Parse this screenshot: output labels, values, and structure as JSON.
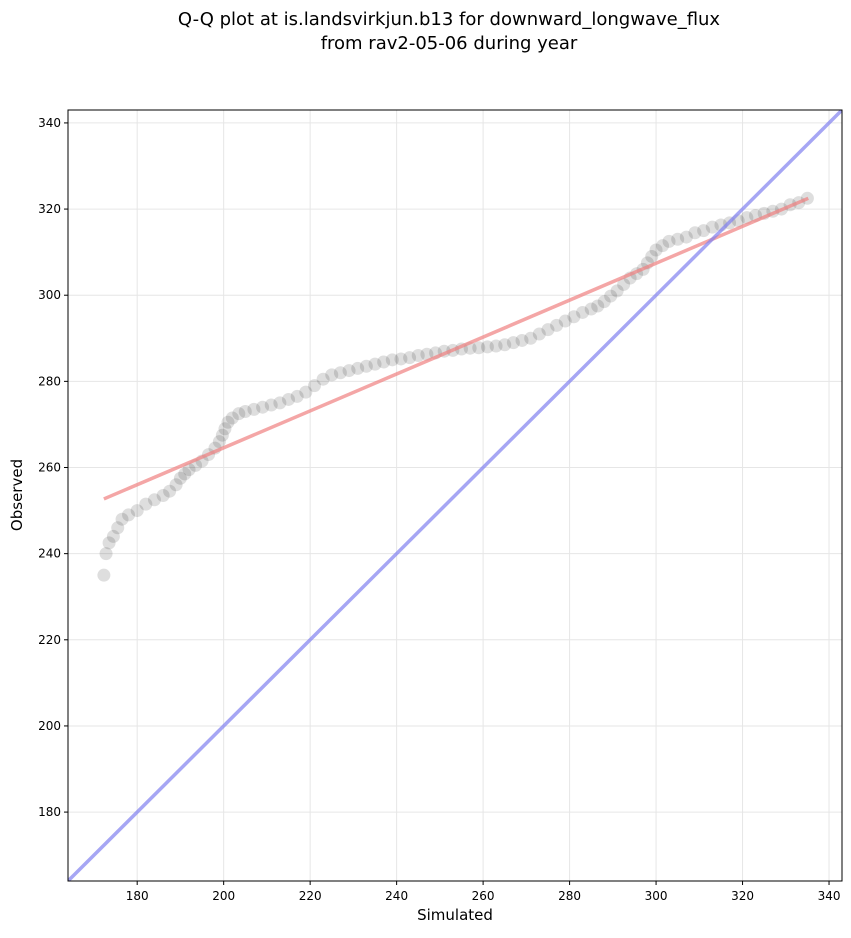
{
  "chart_data": {
    "type": "scatter",
    "title": "Q-Q plot at is.landsvirkjun.b13 for downward_longwave_flux",
    "subtitle": "from rav2-05-06 during year",
    "xlabel": "Simulated",
    "ylabel": "Observed",
    "xlim": [
      164,
      343
    ],
    "ylim": [
      164,
      343
    ],
    "xticks": [
      180,
      200,
      220,
      240,
      260,
      280,
      300,
      320,
      340
    ],
    "yticks": [
      180,
      200,
      220,
      240,
      260,
      280,
      300,
      320,
      340
    ],
    "grid": true,
    "series": [
      {
        "kind": "points",
        "color": "#000000",
        "x": [
          172.3,
          172.8,
          173.5,
          174.5,
          175.5,
          176.5,
          178,
          180,
          182,
          184,
          186,
          187.5,
          189,
          190,
          191,
          192,
          193.5,
          195,
          196.5,
          198,
          199,
          199.7,
          200.3,
          201,
          202,
          203.5,
          205,
          207,
          209,
          211,
          213,
          215,
          217,
          219,
          221,
          223,
          225,
          227,
          229,
          231,
          233,
          235,
          237,
          239,
          241,
          243,
          245,
          247,
          249,
          251,
          253,
          255,
          257,
          259,
          261,
          263,
          265,
          267,
          269,
          271,
          273,
          275,
          277,
          279,
          281,
          283,
          285,
          286.5,
          288,
          289.5,
          291,
          292.5,
          294,
          295.5,
          297,
          298,
          299,
          300,
          301.5,
          303,
          305,
          307,
          309,
          311,
          313,
          315,
          317,
          319,
          321,
          323,
          325,
          327,
          329,
          331,
          333,
          335
        ],
        "y": [
          235,
          240,
          242.5,
          244,
          246,
          248,
          249,
          250,
          251.5,
          252.5,
          253.5,
          254.5,
          256,
          257.5,
          258.5,
          259.5,
          260.5,
          261.5,
          263,
          264.5,
          266,
          267.5,
          269,
          270.5,
          271.5,
          272.5,
          273,
          273.5,
          274,
          274.5,
          275,
          275.8,
          276.5,
          277.5,
          279,
          280.5,
          281.5,
          282,
          282.5,
          283,
          283.5,
          284,
          284.5,
          285,
          285.2,
          285.5,
          286,
          286.3,
          286.6,
          287,
          287.2,
          287.5,
          287.7,
          287.8,
          288,
          288.2,
          288.5,
          289,
          289.5,
          290,
          291,
          292,
          293,
          294,
          295,
          296,
          296.8,
          297.5,
          298.5,
          299.8,
          301,
          302.5,
          304,
          305,
          306,
          307.5,
          309,
          310.5,
          311.5,
          312.5,
          313,
          313.5,
          314.5,
          315,
          315.8,
          316.3,
          316.8,
          317.3,
          318,
          318.5,
          319,
          319.5,
          320,
          321,
          321.5,
          322.5
        ]
      },
      {
        "kind": "fit-line",
        "color": "#f08080",
        "x": [
          172.3,
          335.2
        ],
        "y": [
          252.7,
          322.5
        ]
      },
      {
        "kind": "reference-line",
        "color": "#8080f0",
        "x": [
          164,
          343
        ],
        "y": [
          164,
          343
        ]
      }
    ]
  }
}
